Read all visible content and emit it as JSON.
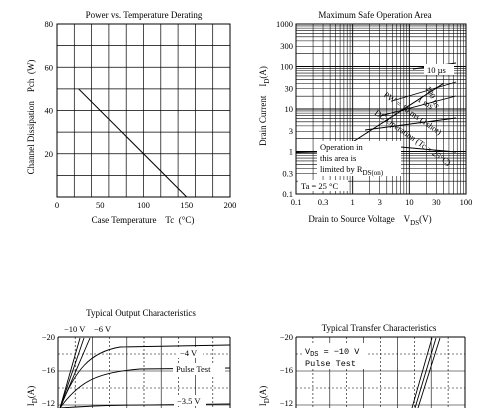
{
  "chart_data": [
    {
      "type": "line",
      "title": "Power vs. Temperature Derating",
      "xlabel": "Case Temperature    Tc  (°C)",
      "ylabel": "Channel Dissipation    Pch  (W)",
      "xlim": [
        0,
        200
      ],
      "ylim": [
        0,
        80
      ],
      "xticks": [
        "0",
        "50",
        "100",
        "150",
        "200"
      ],
      "yticks": [
        "20",
        "40",
        "60",
        "80"
      ],
      "grid": true,
      "series": [
        {
          "x": [
            25,
            150
          ],
          "y": [
            50,
            0
          ]
        }
      ]
    },
    {
      "type": "line",
      "title": "Maximum Safe Operation Area",
      "xlabel": "Drain to Source Voltage    V",
      "xlabel_sub": "DS",
      "xlabel_unit": "(V)",
      "ylabel": "Drain Current    I",
      "ylabel_sub": "D",
      "ylabel_unit": "(A)",
      "xscale": "log",
      "yscale": "log",
      "xlim": [
        0.1,
        100
      ],
      "ylim": [
        0.1,
        1000
      ],
      "xticks": [
        "0.1",
        "0.3",
        "1",
        "3",
        "10",
        "30",
        "100"
      ],
      "yticks": [
        "0.1",
        "0.3",
        "1",
        "3",
        "10",
        "30",
        "100",
        "300",
        "1000"
      ],
      "grid": true,
      "annotations": {
        "a10us": "10 µs",
        "a100us": "100 µs",
        "a1ms": "1 ms",
        "pw": "PW = 10 ms (1shot)",
        "dc": "DC Operation (Tc = 25°C)",
        "op1": "Operation in",
        "op2": "this area is",
        "op3": "limited by R",
        "op3sub": "DS(on)",
        "ta": "Ta = 25 °C"
      },
      "series": [
        {
          "x": [
            0.1,
            0.55
          ],
          "y": [
            0.95,
            1.0
          ]
        },
        {
          "x": [
            0.55,
            40
          ],
          "y": [
            1.0,
            40
          ]
        }
      ]
    },
    {
      "type": "line",
      "title": "Typical Output Characteristics",
      "ylabel": "I",
      "ylabel_sub": "D",
      "ylabel_unit": "(A)",
      "yticks": [
        "−20",
        "−16",
        "−12"
      ],
      "annotations": {
        "v10": "−10 V",
        "v6": "−6 V",
        "v4": "−4 V",
        "pulse": "Pulse Test",
        "v35": "−3.5 V"
      }
    },
    {
      "type": "line",
      "title": "Typical Transfer Characteristics",
      "ylabel": "I",
      "ylabel_sub": "D",
      "ylabel_unit": "(A)",
      "yticks": [
        "−20",
        "−16",
        "−12"
      ],
      "annotations": {
        "vds": "V",
        "vds_sub": "DS",
        "vds_val": " = −10 V",
        "pulse": "Pulse Test"
      }
    }
  ]
}
